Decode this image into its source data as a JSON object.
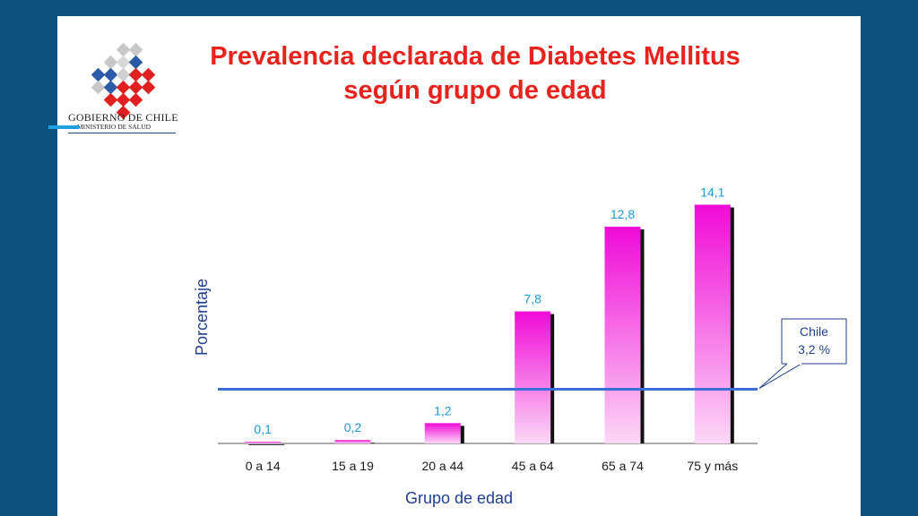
{
  "header": {
    "title_line1": "Prevalencia declarada de Diabetes Mellitus",
    "title_line2": "según grupo de edad"
  },
  "logo": {
    "line1": "GOBIERNO DE CHILE",
    "line2": "MINISTERIO DE SALUD"
  },
  "colors": {
    "background": "#0b5280",
    "title": "#e8221c",
    "bar_top": "#f00ad8",
    "bar_bottom": "#fcd8f6",
    "reference_line": "#3b6fd8",
    "value_labels": "#1a9ad6",
    "axis_text": "#1f3f8f"
  },
  "chart_data": {
    "type": "bar",
    "categories": [
      "0 a 14",
      "15 a 19",
      "20 a 44",
      "45 a 64",
      "65 a 74",
      "75 y más"
    ],
    "values": [
      0.1,
      0.2,
      1.2,
      7.8,
      12.8,
      14.1
    ],
    "value_labels": [
      "0,1",
      "0,2",
      "1,2",
      "7,8",
      "12,8",
      "14,1"
    ],
    "xlabel": "Grupo de edad",
    "ylabel": "Porcentaje",
    "ylim": [
      0,
      15
    ],
    "grid": false,
    "reference_line": {
      "value": 3.2,
      "label_line1": "Chile",
      "label_line2": "3,2 %"
    }
  }
}
